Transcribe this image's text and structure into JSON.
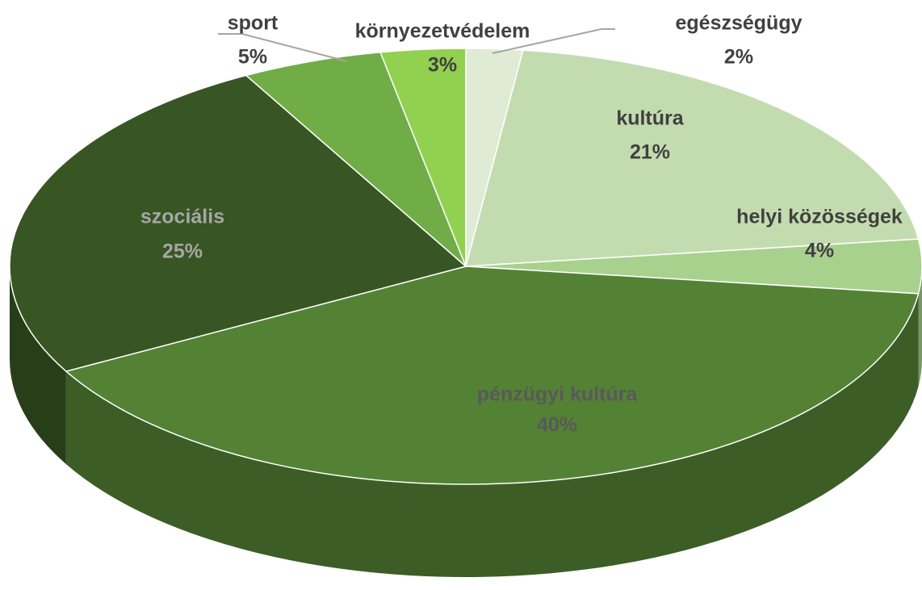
{
  "chart_data": {
    "type": "pie",
    "categories": [
      "egészségügy",
      "kultúra",
      "helyi közösségek",
      "pénzügyi kultúra",
      "szociális",
      "sport",
      "környezetvédelem"
    ],
    "values": [
      2,
      21,
      4,
      40,
      25,
      5,
      3
    ],
    "value_labels": [
      "2%",
      "21%",
      "4%",
      "40%",
      "25%",
      "5%",
      "3%"
    ],
    "colors": [
      "#dfebd5",
      "#c3dcaf",
      "#a9d18e",
      "#548235",
      "#375623",
      "#70ad47",
      "#92d050"
    ]
  }
}
